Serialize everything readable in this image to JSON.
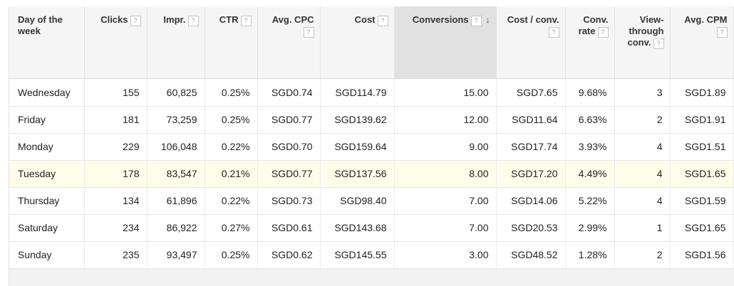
{
  "columns": [
    {
      "key": "day",
      "label": "Day of the week",
      "help": false,
      "align": "left"
    },
    {
      "key": "clicks",
      "label": "Clicks",
      "help": true,
      "align": "right"
    },
    {
      "key": "impr",
      "label": "Impr.",
      "help": true,
      "align": "right"
    },
    {
      "key": "ctr",
      "label": "CTR",
      "help": true,
      "align": "right"
    },
    {
      "key": "avg_cpc",
      "label": "Avg. CPC",
      "help": true,
      "align": "right"
    },
    {
      "key": "cost",
      "label": "Cost",
      "help": true,
      "align": "right"
    },
    {
      "key": "conversions",
      "label": "Conversions",
      "help": true,
      "align": "right",
      "sorted": true,
      "sort_icon": "sort-down-arrow-icon"
    },
    {
      "key": "cost_per_conv",
      "label": "Cost / conv.",
      "help": true,
      "align": "right"
    },
    {
      "key": "conv_rate",
      "label": "Conv. rate",
      "help": true,
      "align": "right"
    },
    {
      "key": "view_through",
      "label": "View-through conv.",
      "help": true,
      "align": "right"
    },
    {
      "key": "avg_cpm",
      "label": "Avg. CPM",
      "help": true,
      "align": "right"
    }
  ],
  "help_glyph": "?",
  "sort_glyph": "↓",
  "rows": [
    {
      "day": "Wednesday",
      "clicks": "155",
      "impr": "60,825",
      "ctr": "0.25%",
      "avg_cpc": "SGD0.74",
      "cost": "SGD114.79",
      "conversions": "15.00",
      "cost_per_conv": "SGD7.65",
      "conv_rate": "9.68%",
      "view_through": "3",
      "avg_cpm": "SGD1.89"
    },
    {
      "day": "Friday",
      "clicks": "181",
      "impr": "73,259",
      "ctr": "0.25%",
      "avg_cpc": "SGD0.77",
      "cost": "SGD139.62",
      "conversions": "12.00",
      "cost_per_conv": "SGD11.64",
      "conv_rate": "6.63%",
      "view_through": "2",
      "avg_cpm": "SGD1.91"
    },
    {
      "day": "Monday",
      "clicks": "229",
      "impr": "106,048",
      "ctr": "0.22%",
      "avg_cpc": "SGD0.70",
      "cost": "SGD159.64",
      "conversions": "9.00",
      "cost_per_conv": "SGD17.74",
      "conv_rate": "3.93%",
      "view_through": "4",
      "avg_cpm": "SGD1.51"
    },
    {
      "day": "Tuesday",
      "clicks": "178",
      "impr": "83,547",
      "ctr": "0.21%",
      "avg_cpc": "SGD0.77",
      "cost": "SGD137.56",
      "conversions": "8.00",
      "cost_per_conv": "SGD17.20",
      "conv_rate": "4.49%",
      "view_through": "4",
      "avg_cpm": "SGD1.65",
      "highlighted": true
    },
    {
      "day": "Thursday",
      "clicks": "134",
      "impr": "61,896",
      "ctr": "0.22%",
      "avg_cpc": "SGD0.73",
      "cost": "SGD98.40",
      "conversions": "7.00",
      "cost_per_conv": "SGD14.06",
      "conv_rate": "5.22%",
      "view_through": "4",
      "avg_cpm": "SGD1.59"
    },
    {
      "day": "Saturday",
      "clicks": "234",
      "impr": "86,922",
      "ctr": "0.27%",
      "avg_cpc": "SGD0.61",
      "cost": "SGD143.68",
      "conversions": "7.00",
      "cost_per_conv": "SGD20.53",
      "conv_rate": "2.99%",
      "view_through": "1",
      "avg_cpm": "SGD1.65"
    },
    {
      "day": "Sunday",
      "clicks": "235",
      "impr": "93,497",
      "ctr": "0.25%",
      "avg_cpc": "SGD0.62",
      "cost": "SGD145.55",
      "conversions": "3.00",
      "cost_per_conv": "SGD48.52",
      "conv_rate": "1.28%",
      "view_through": "2",
      "avg_cpm": "SGD1.56"
    }
  ],
  "colors": {
    "header_bg": "#f5f5f5",
    "sorted_header_bg": "#e1e1e1",
    "highlight_row_bg": "#fdfde9",
    "footer_bg": "#f1f1f1"
  }
}
